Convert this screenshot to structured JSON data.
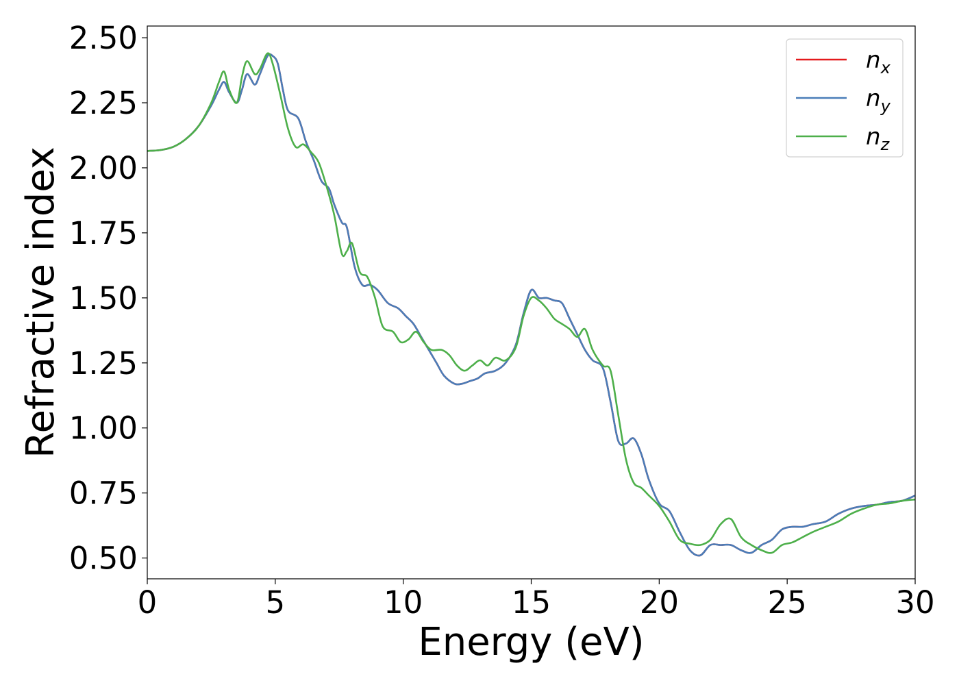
{
  "chart_data": {
    "type": "line",
    "xlabel": "Energy (eV)",
    "ylabel": "Refractive index",
    "xlim": [
      0,
      30
    ],
    "ylim": [
      0.42,
      2.545
    ],
    "x_ticks": [
      0,
      5,
      10,
      15,
      20,
      25,
      30
    ],
    "x_tick_labels": [
      "0",
      "5",
      "10",
      "15",
      "20",
      "25",
      "30"
    ],
    "y_ticks": [
      0.5,
      0.75,
      1.0,
      1.25,
      1.5,
      1.75,
      2.0,
      2.25,
      2.5
    ],
    "y_tick_labels": [
      "0.50",
      "0.75",
      "1.00",
      "1.25",
      "1.50",
      "1.75",
      "2.00",
      "2.25",
      "2.50"
    ],
    "grid": false,
    "legend_position": "top-right",
    "series": [
      {
        "name": "n_x",
        "label_base": "n",
        "label_sub": "x",
        "color": "#e41a1c",
        "points": [
          [
            0,
            2.065
          ],
          [
            0.5,
            2.068
          ],
          [
            1.0,
            2.08
          ],
          [
            1.5,
            2.11
          ],
          [
            2.0,
            2.16
          ],
          [
            2.5,
            2.24
          ],
          [
            2.8,
            2.3
          ],
          [
            3.0,
            2.33
          ],
          [
            3.2,
            2.29
          ],
          [
            3.5,
            2.25
          ],
          [
            3.7,
            2.3
          ],
          [
            3.9,
            2.36
          ],
          [
            4.2,
            2.32
          ],
          [
            4.4,
            2.36
          ],
          [
            4.7,
            2.43
          ],
          [
            4.9,
            2.43
          ],
          [
            5.1,
            2.4
          ],
          [
            5.3,
            2.3
          ],
          [
            5.5,
            2.22
          ],
          [
            5.9,
            2.19
          ],
          [
            6.2,
            2.1
          ],
          [
            6.5,
            2.03
          ],
          [
            6.8,
            1.95
          ],
          [
            7.1,
            1.92
          ],
          [
            7.3,
            1.86
          ],
          [
            7.6,
            1.79
          ],
          [
            7.8,
            1.77
          ],
          [
            8.1,
            1.62
          ],
          [
            8.4,
            1.55
          ],
          [
            8.7,
            1.55
          ],
          [
            9.0,
            1.53
          ],
          [
            9.4,
            1.48
          ],
          [
            9.8,
            1.46
          ],
          [
            10.1,
            1.43
          ],
          [
            10.4,
            1.4
          ],
          [
            10.7,
            1.35
          ],
          [
            11.0,
            1.3
          ],
          [
            11.3,
            1.25
          ],
          [
            11.6,
            1.2
          ],
          [
            12.0,
            1.17
          ],
          [
            12.3,
            1.17
          ],
          [
            12.6,
            1.18
          ],
          [
            12.9,
            1.19
          ],
          [
            13.2,
            1.21
          ],
          [
            13.6,
            1.22
          ],
          [
            14.0,
            1.25
          ],
          [
            14.4,
            1.32
          ],
          [
            14.7,
            1.44
          ],
          [
            15.0,
            1.53
          ],
          [
            15.3,
            1.5
          ],
          [
            15.6,
            1.5
          ],
          [
            15.9,
            1.49
          ],
          [
            16.2,
            1.48
          ],
          [
            16.5,
            1.42
          ],
          [
            16.8,
            1.36
          ],
          [
            17.1,
            1.3
          ],
          [
            17.4,
            1.26
          ],
          [
            17.8,
            1.23
          ],
          [
            18.1,
            1.1
          ],
          [
            18.4,
            0.95
          ],
          [
            18.7,
            0.94
          ],
          [
            19.0,
            0.96
          ],
          [
            19.3,
            0.9
          ],
          [
            19.6,
            0.8
          ],
          [
            20.0,
            0.71
          ],
          [
            20.4,
            0.68
          ],
          [
            20.8,
            0.6
          ],
          [
            21.2,
            0.53
          ],
          [
            21.6,
            0.51
          ],
          [
            22.0,
            0.55
          ],
          [
            22.4,
            0.55
          ],
          [
            22.8,
            0.55
          ],
          [
            23.2,
            0.53
          ],
          [
            23.6,
            0.52
          ],
          [
            24.0,
            0.55
          ],
          [
            24.4,
            0.57
          ],
          [
            24.8,
            0.61
          ],
          [
            25.2,
            0.62
          ],
          [
            25.6,
            0.62
          ],
          [
            26.0,
            0.63
          ],
          [
            26.5,
            0.64
          ],
          [
            27.0,
            0.67
          ],
          [
            27.5,
            0.69
          ],
          [
            28.0,
            0.7
          ],
          [
            28.5,
            0.705
          ],
          [
            29.0,
            0.715
          ],
          [
            29.5,
            0.72
          ],
          [
            30.0,
            0.74
          ]
        ]
      },
      {
        "name": "n_y",
        "label_base": "n",
        "label_sub": "y",
        "color": "#4a7db8",
        "points": [
          [
            0,
            2.065
          ],
          [
            0.5,
            2.068
          ],
          [
            1.0,
            2.08
          ],
          [
            1.5,
            2.11
          ],
          [
            2.0,
            2.16
          ],
          [
            2.5,
            2.24
          ],
          [
            2.8,
            2.3
          ],
          [
            3.0,
            2.33
          ],
          [
            3.2,
            2.29
          ],
          [
            3.5,
            2.25
          ],
          [
            3.7,
            2.3
          ],
          [
            3.9,
            2.36
          ],
          [
            4.2,
            2.32
          ],
          [
            4.4,
            2.36
          ],
          [
            4.7,
            2.43
          ],
          [
            4.9,
            2.43
          ],
          [
            5.1,
            2.4
          ],
          [
            5.3,
            2.3
          ],
          [
            5.5,
            2.22
          ],
          [
            5.9,
            2.19
          ],
          [
            6.2,
            2.1
          ],
          [
            6.5,
            2.03
          ],
          [
            6.8,
            1.95
          ],
          [
            7.1,
            1.92
          ],
          [
            7.3,
            1.86
          ],
          [
            7.6,
            1.79
          ],
          [
            7.8,
            1.77
          ],
          [
            8.1,
            1.62
          ],
          [
            8.4,
            1.55
          ],
          [
            8.7,
            1.55
          ],
          [
            9.0,
            1.53
          ],
          [
            9.4,
            1.48
          ],
          [
            9.8,
            1.46
          ],
          [
            10.1,
            1.43
          ],
          [
            10.4,
            1.4
          ],
          [
            10.7,
            1.35
          ],
          [
            11.0,
            1.3
          ],
          [
            11.3,
            1.25
          ],
          [
            11.6,
            1.2
          ],
          [
            12.0,
            1.17
          ],
          [
            12.3,
            1.17
          ],
          [
            12.6,
            1.18
          ],
          [
            12.9,
            1.19
          ],
          [
            13.2,
            1.21
          ],
          [
            13.6,
            1.22
          ],
          [
            14.0,
            1.25
          ],
          [
            14.4,
            1.32
          ],
          [
            14.7,
            1.44
          ],
          [
            15.0,
            1.53
          ],
          [
            15.3,
            1.5
          ],
          [
            15.6,
            1.5
          ],
          [
            15.9,
            1.49
          ],
          [
            16.2,
            1.48
          ],
          [
            16.5,
            1.42
          ],
          [
            16.8,
            1.36
          ],
          [
            17.1,
            1.3
          ],
          [
            17.4,
            1.26
          ],
          [
            17.8,
            1.23
          ],
          [
            18.1,
            1.1
          ],
          [
            18.4,
            0.95
          ],
          [
            18.7,
            0.94
          ],
          [
            19.0,
            0.96
          ],
          [
            19.3,
            0.9
          ],
          [
            19.6,
            0.8
          ],
          [
            20.0,
            0.71
          ],
          [
            20.4,
            0.68
          ],
          [
            20.8,
            0.6
          ],
          [
            21.2,
            0.53
          ],
          [
            21.6,
            0.51
          ],
          [
            22.0,
            0.55
          ],
          [
            22.4,
            0.55
          ],
          [
            22.8,
            0.55
          ],
          [
            23.2,
            0.53
          ],
          [
            23.6,
            0.52
          ],
          [
            24.0,
            0.55
          ],
          [
            24.4,
            0.57
          ],
          [
            24.8,
            0.61
          ],
          [
            25.2,
            0.62
          ],
          [
            25.6,
            0.62
          ],
          [
            26.0,
            0.63
          ],
          [
            26.5,
            0.64
          ],
          [
            27.0,
            0.67
          ],
          [
            27.5,
            0.69
          ],
          [
            28.0,
            0.7
          ],
          [
            28.5,
            0.705
          ],
          [
            29.0,
            0.715
          ],
          [
            29.5,
            0.72
          ],
          [
            30.0,
            0.74
          ]
        ]
      },
      {
        "name": "n_z",
        "label_base": "n",
        "label_sub": "z",
        "color": "#4daf4a",
        "points": [
          [
            0,
            2.065
          ],
          [
            0.5,
            2.068
          ],
          [
            1.0,
            2.08
          ],
          [
            1.5,
            2.11
          ],
          [
            2.0,
            2.16
          ],
          [
            2.5,
            2.25
          ],
          [
            2.8,
            2.33
          ],
          [
            3.0,
            2.37
          ],
          [
            3.2,
            2.3
          ],
          [
            3.5,
            2.25
          ],
          [
            3.7,
            2.35
          ],
          [
            3.9,
            2.41
          ],
          [
            4.2,
            2.36
          ],
          [
            4.4,
            2.38
          ],
          [
            4.7,
            2.44
          ],
          [
            4.9,
            2.4
          ],
          [
            5.2,
            2.28
          ],
          [
            5.5,
            2.15
          ],
          [
            5.8,
            2.08
          ],
          [
            6.1,
            2.09
          ],
          [
            6.4,
            2.06
          ],
          [
            6.7,
            2.02
          ],
          [
            7.0,
            1.93
          ],
          [
            7.3,
            1.82
          ],
          [
            7.6,
            1.67
          ],
          [
            7.8,
            1.68
          ],
          [
            8.0,
            1.71
          ],
          [
            8.3,
            1.6
          ],
          [
            8.6,
            1.58
          ],
          [
            8.9,
            1.5
          ],
          [
            9.2,
            1.39
          ],
          [
            9.6,
            1.37
          ],
          [
            9.9,
            1.33
          ],
          [
            10.2,
            1.34
          ],
          [
            10.5,
            1.37
          ],
          [
            10.8,
            1.33
          ],
          [
            11.1,
            1.3
          ],
          [
            11.5,
            1.3
          ],
          [
            11.8,
            1.28
          ],
          [
            12.1,
            1.24
          ],
          [
            12.4,
            1.22
          ],
          [
            12.7,
            1.24
          ],
          [
            13.0,
            1.26
          ],
          [
            13.3,
            1.24
          ],
          [
            13.6,
            1.27
          ],
          [
            14.0,
            1.26
          ],
          [
            14.4,
            1.31
          ],
          [
            14.7,
            1.43
          ],
          [
            15.0,
            1.5
          ],
          [
            15.3,
            1.49
          ],
          [
            15.6,
            1.46
          ],
          [
            15.9,
            1.42
          ],
          [
            16.2,
            1.4
          ],
          [
            16.5,
            1.38
          ],
          [
            16.8,
            1.35
          ],
          [
            17.1,
            1.38
          ],
          [
            17.4,
            1.3
          ],
          [
            17.8,
            1.24
          ],
          [
            18.1,
            1.22
          ],
          [
            18.4,
            1.05
          ],
          [
            18.7,
            0.88
          ],
          [
            19.0,
            0.79
          ],
          [
            19.3,
            0.77
          ],
          [
            19.6,
            0.74
          ],
          [
            20.0,
            0.7
          ],
          [
            20.4,
            0.64
          ],
          [
            20.8,
            0.57
          ],
          [
            21.2,
            0.555
          ],
          [
            21.6,
            0.55
          ],
          [
            22.0,
            0.57
          ],
          [
            22.4,
            0.63
          ],
          [
            22.8,
            0.65
          ],
          [
            23.2,
            0.58
          ],
          [
            23.6,
            0.55
          ],
          [
            24.0,
            0.53
          ],
          [
            24.4,
            0.52
          ],
          [
            24.8,
            0.55
          ],
          [
            25.2,
            0.56
          ],
          [
            25.6,
            0.58
          ],
          [
            26.0,
            0.6
          ],
          [
            26.5,
            0.62
          ],
          [
            27.0,
            0.64
          ],
          [
            27.5,
            0.67
          ],
          [
            28.0,
            0.69
          ],
          [
            28.5,
            0.705
          ],
          [
            29.0,
            0.71
          ],
          [
            29.5,
            0.72
          ],
          [
            30.0,
            0.725
          ]
        ]
      }
    ]
  }
}
